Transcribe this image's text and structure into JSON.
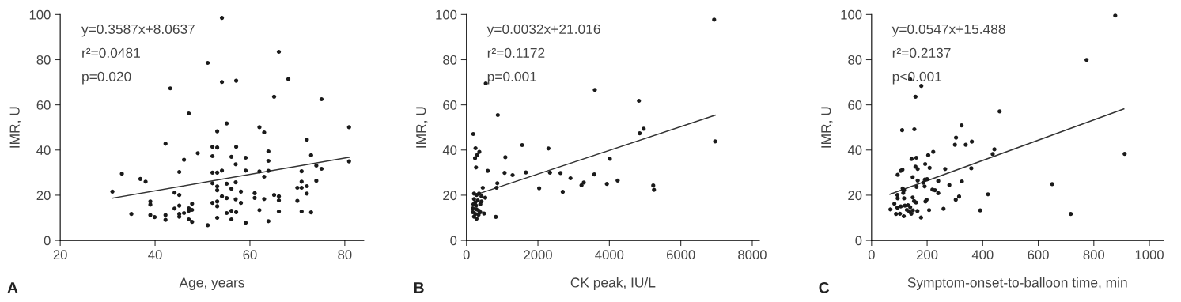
{
  "chart_data": [
    {
      "type": "scatter",
      "xlabel": "Age, years",
      "ylabel": "IMR, U",
      "xlim": [
        20,
        84
      ],
      "xticks": [
        20,
        40,
        60,
        80
      ],
      "ylim": [
        0,
        100
      ],
      "yticks": [
        0,
        20,
        40,
        60,
        80,
        100
      ],
      "grid": false,
      "legend": false,
      "annotations": [
        "y=0.3587x+8.0637",
        "r²=0.0481",
        "p=0.020",
        "A"
      ],
      "series": [
        {
          "marker": "circle",
          "color": "#1a1a1a",
          "x": [
            54.1,
            66.1,
            51.1,
            68.1,
            54.1,
            57.1,
            43.2,
            65.1,
            75.1,
            47.1,
            55.1,
            62.0,
            80.9,
            53.1,
            63.0,
            72.0,
            42.2,
            52.1,
            53.1,
            57.1,
            49.0,
            63.9,
            72.9,
            52.1,
            56.1,
            59.1,
            46.1,
            63.9,
            80.9,
            57.0,
            74.0,
            75.1,
            33.0,
            54.1,
            52.1,
            53.1,
            45.1,
            59.1,
            62.0,
            63.9,
            70.9,
            36.9,
            38.0,
            63.0,
            52.1,
            55.1,
            57.0,
            70.9,
            74.0,
            53.1,
            56.1,
            70.0,
            70.9,
            72.0,
            53.1,
            58.1,
            31.0,
            44.1,
            45.1,
            72.0,
            61.0,
            54.1,
            65.1,
            66.1,
            55.1,
            57.0,
            61.0,
            63.0,
            66.1,
            39.0,
            52.1,
            53.1,
            58.1,
            70.0,
            39.0,
            47.8,
            45.1,
            53.1,
            44.1,
            47.1,
            47.8,
            62.0,
            55.1,
            56.1,
            57.1,
            66.1,
            70.9,
            72.9,
            35.0,
            39.0,
            39.9,
            42.2,
            45.1,
            45.1,
            46.1,
            47.1,
            42.2,
            53.1,
            56.1,
            47.1,
            47.8,
            59.1,
            63.9,
            51.1
          ],
          "values": [
            98.5,
            83.5,
            78.6,
            71.4,
            70.1,
            70.7,
            67.3,
            63.6,
            62.5,
            56.2,
            51.8,
            50.1,
            50.1,
            48.3,
            47.8,
            44.6,
            42.8,
            41.4,
            41.1,
            41.4,
            38.6,
            39.4,
            37.7,
            37.3,
            37.0,
            36.6,
            35.7,
            35.2,
            35.0,
            33.7,
            33.1,
            31.7,
            29.5,
            30.9,
            30.0,
            30.0,
            30.3,
            30.9,
            30.5,
            30.8,
            30.6,
            27.2,
            26.0,
            28.2,
            25.3,
            25.1,
            25.7,
            26.0,
            26.4,
            23.9,
            22.9,
            23.3,
            23.3,
            24.0,
            22.2,
            21.6,
            21.6,
            21.1,
            20.1,
            20.7,
            20.9,
            19.5,
            20.1,
            19.5,
            18.7,
            18.2,
            18.8,
            18.3,
            17.7,
            17.2,
            16.6,
            17.2,
            16.6,
            17.5,
            15.8,
            16.2,
            15.4,
            15.1,
            14.1,
            14.2,
            13.5,
            13.4,
            12.1,
            13.1,
            12.5,
            12.8,
            12.8,
            12.4,
            11.7,
            11.2,
            10.3,
            11.2,
            11.7,
            10.5,
            12.1,
            13.1,
            9.1,
            10.0,
            9.3,
            9.3,
            8.2,
            7.8,
            8.5,
            6.7
          ]
        },
        {
          "type": "line",
          "marker": "none",
          "line_style": "solid",
          "color": "#333333",
          "x": [
            31,
            81
          ],
          "values": [
            18.7,
            36.8
          ]
        }
      ]
    },
    {
      "type": "scatter",
      "xlabel": "CK peak, IU/L",
      "ylabel": "IMR, U",
      "xlim": [
        0,
        8200
      ],
      "xticks": [
        0,
        2000,
        4000,
        6000,
        8000
      ],
      "ylim": [
        0,
        100
      ],
      "yticks": [
        0,
        20,
        40,
        60,
        80,
        100
      ],
      "grid": false,
      "legend": false,
      "annotations": [
        "y=0.0032x+21.016",
        "r²=0.1172",
        "p=0.001",
        "B"
      ],
      "series": [
        {
          "marker": "circle",
          "color": "#1a1a1a",
          "x": [
            6933,
            540,
            3593,
            4828,
            877,
            189,
            4961,
            4849,
            6961,
            1558,
            253,
            2295,
            300,
            360,
            239,
            1088,
            4014,
            267,
            596,
            1067,
            1291,
            1663,
            2337,
            2632,
            3579,
            2912,
            4232,
            863,
            3284,
            3221,
            3930,
            5228,
            5249,
            2035,
            2695,
            456,
            842,
            526,
            491,
            821,
            211,
            281,
            351,
            211,
            316,
            421,
            196,
            267,
            386,
            175,
            281,
            351,
            175,
            246,
            386,
            211,
            281,
            337,
            421,
            246
          ],
          "values": [
            97.7,
            69.5,
            66.6,
            61.8,
            55.5,
            47.1,
            49.4,
            47.4,
            43.8,
            42.2,
            40.8,
            40.7,
            37.8,
            39.2,
            36.4,
            36.8,
            36.1,
            32.3,
            30.8,
            29.9,
            28.9,
            30.1,
            30.0,
            29.8,
            29.2,
            27.5,
            26.5,
            25.3,
            25.6,
            24.4,
            25.0,
            24.3,
            22.4,
            23.1,
            21.5,
            23.3,
            23.3,
            18.9,
            11.9,
            10.4,
            20.7,
            20.1,
            20.7,
            18.3,
            17.7,
            17.2,
            16.0,
            15.4,
            16.0,
            14.2,
            13.7,
            13.1,
            12.5,
            11.7,
            12.5,
            10.5,
            9.6,
            11.3,
            19.5,
            16.8
          ]
        },
        {
          "type": "line",
          "marker": "none",
          "line_style": "solid",
          "color": "#333333",
          "x": [
            386,
            6960
          ],
          "values": [
            20.9,
            55.4
          ]
        }
      ]
    },
    {
      "type": "scatter",
      "xlabel": "Symptom-onset-to-balloon time, min",
      "ylabel": "IMR, U",
      "xlim": [
        0,
        1050
      ],
      "xticks": [
        0,
        200,
        400,
        600,
        800,
        1000
      ],
      "ylim": [
        0,
        100
      ],
      "yticks": [
        0,
        20,
        40,
        60,
        80,
        100
      ],
      "grid": false,
      "legend": false,
      "annotations": [
        "y=0.0547x+15.488",
        "r²=0.2137",
        "p<0.001",
        "C"
      ],
      "series": [
        {
          "marker": "circle",
          "color": "#1a1a1a",
          "x": [
            877,
            774,
            139,
            179,
            158,
            461,
            110,
            154,
            324,
            304,
            300,
            339,
            361,
            442,
            436,
            911,
            222,
            204,
            144,
            161,
            193,
            209,
            158,
            166,
            111,
            105,
            94,
            265,
            359,
            148,
            166,
            162,
            192,
            200,
            186,
            191,
            240,
            325,
            280,
            650,
            219,
            228,
            240,
            112,
            117,
            114,
            93,
            94,
            117,
            148,
            419,
            315,
            303,
            198,
            194,
            153,
            160,
            82,
            105,
            120,
            131,
            139,
            93,
            68,
            127,
            136,
            143,
            149,
            165,
            259,
            207,
            391,
            88,
            102,
            116,
            178,
            717
          ],
          "values": [
            99.5,
            79.9,
            71.3,
            68.4,
            63.6,
            57.1,
            48.8,
            49.2,
            50.9,
            45.5,
            42.3,
            42.3,
            43.7,
            40.3,
            38.2,
            38.3,
            39.2,
            37.7,
            36.0,
            36.6,
            33.8,
            32.1,
            32.6,
            31.6,
            31.3,
            30.8,
            29.0,
            31.6,
            31.9,
            28.0,
            26.5,
            23.7,
            26.9,
            27.1,
            25.5,
            23.9,
            26.3,
            26.1,
            24.5,
            24.9,
            22.5,
            22.2,
            20.9,
            23.0,
            22.2,
            21.0,
            20.1,
            18.6,
            18.6,
            19.0,
            20.4,
            19.4,
            18.0,
            18.0,
            17.2,
            17.4,
            16.8,
            16.2,
            15.0,
            15.4,
            15.6,
            14.7,
            14.5,
            13.7,
            13.5,
            12.7,
            11.8,
            13.3,
            13.0,
            14.0,
            13.4,
            13.3,
            11.7,
            11.8,
            10.7,
            10.1,
            11.7
          ]
        },
        {
          "type": "line",
          "marker": "none",
          "line_style": "solid",
          "color": "#333333",
          "x": [
            66,
            908
          ],
          "values": [
            20.4,
            58.2
          ]
        }
      ]
    }
  ]
}
